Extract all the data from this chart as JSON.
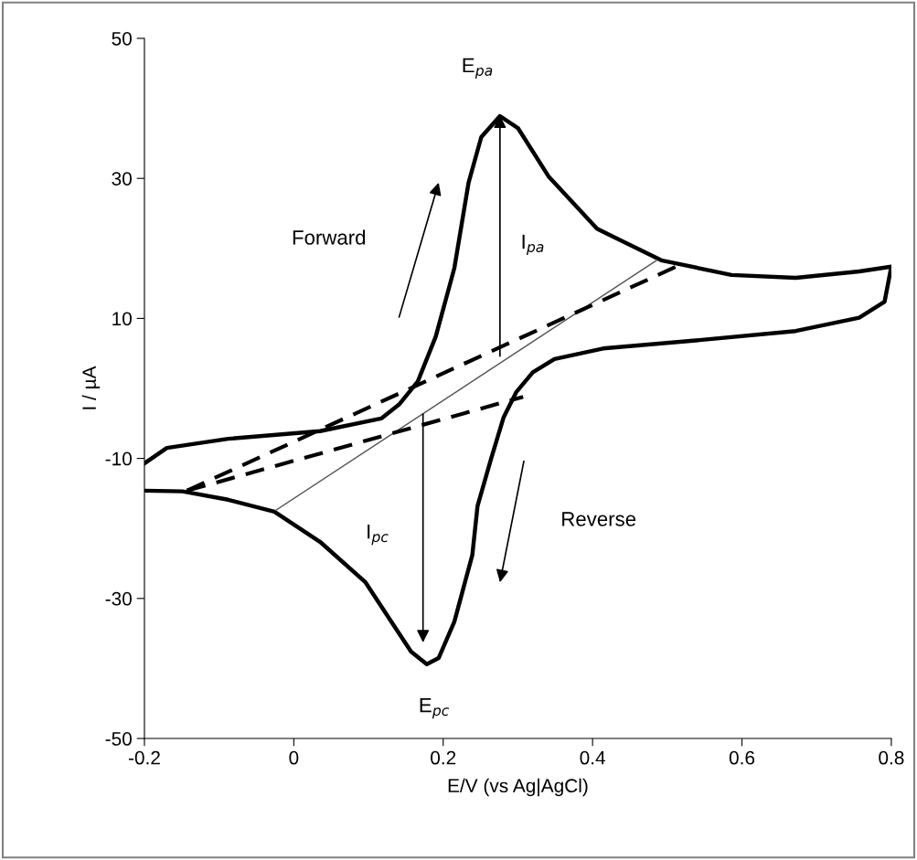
{
  "chart_data": {
    "type": "line",
    "xlabel": "E/V (vs Ag|AgCl)",
    "ylabel": "I / µA",
    "xlim": [
      -0.2,
      0.8
    ],
    "xticks": [
      -0.2,
      0,
      0.2,
      0.4,
      0.6,
      0.8
    ],
    "ylim": [
      -50,
      50
    ],
    "yticks": [
      -50,
      -30,
      -10,
      10,
      30,
      50
    ],
    "grid": false,
    "legend": false,
    "series": [
      {
        "color": "#000000",
        "line_style": "solid",
        "marker": "none",
        "x": [
          -0.2,
          -0.17,
          -0.088,
          0.035,
          0.117,
          0.141,
          0.166,
          0.19,
          0.215,
          0.234,
          0.251,
          0.276,
          0.3,
          0.341,
          0.406,
          0.492,
          0.586,
          0.672,
          0.757,
          0.8,
          0.791,
          0.757,
          0.672,
          0.543,
          0.414,
          0.349,
          0.32,
          0.298,
          0.281,
          0.264,
          0.246,
          0.239,
          0.215,
          0.194,
          0.178,
          0.157,
          0.136,
          0.096,
          0.035,
          -0.026,
          -0.088,
          -0.149,
          -0.2
        ],
        "values": [
          -10.7,
          -8.5,
          -7.2,
          -6.1,
          -4.3,
          -2.3,
          1.0,
          7.4,
          17.2,
          29.4,
          35.9,
          38.9,
          37.2,
          30.3,
          22.8,
          18.3,
          16.2,
          15.8,
          16.7,
          17.4,
          12.4,
          10.1,
          8.2,
          6.9,
          5.7,
          4.2,
          2.3,
          -0.5,
          -4.1,
          -10.1,
          -16.8,
          -23.8,
          -33.3,
          -38.5,
          -39.4,
          -37.6,
          -34.2,
          -27.7,
          -21.9,
          -17.6,
          -15.9,
          -14.7,
          -14.6
        ]
      },
      {
        "color": "#555555",
        "line_style": "solid",
        "marker": "none",
        "x": [
          -0.024,
          0.486
        ],
        "values": [
          -17.4,
          18.3
        ]
      },
      {
        "color": "#000000",
        "line_style": "dashed",
        "marker": "none",
        "x": [
          -0.143,
          0.512
        ],
        "values": [
          -14.6,
          17.4
        ]
      },
      {
        "color": "#000000",
        "line_style": "dashed",
        "marker": "none",
        "x": [
          -0.143,
          0.307
        ],
        "values": [
          -14.6,
          -1.2
        ]
      }
    ],
    "annotations": [
      "E$_{pa}$",
      "I$_{pa}$",
      "Forward",
      "I$_{pc}$",
      "Reverse",
      "E$_{pc}$"
    ]
  }
}
